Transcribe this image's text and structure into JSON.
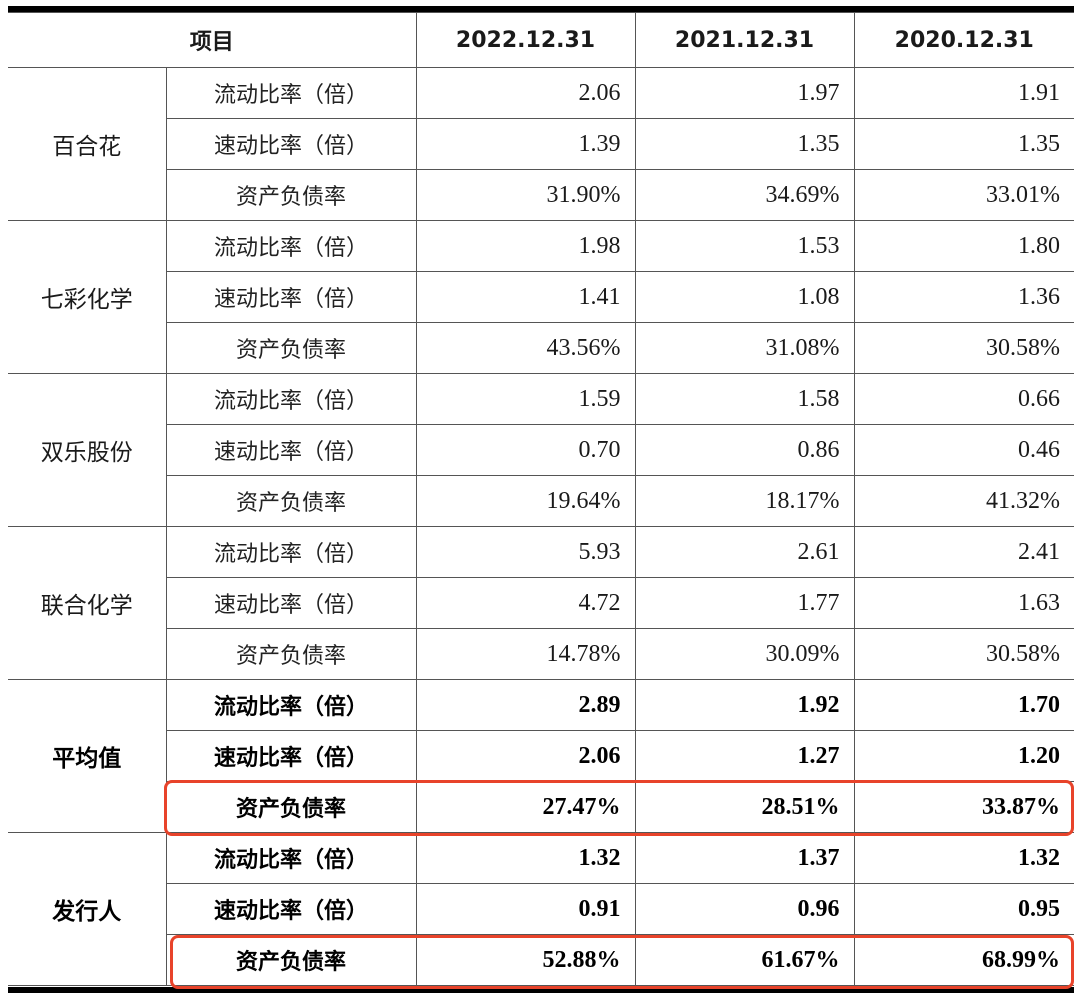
{
  "header": {
    "item": "项目",
    "col1": "2022.12.31",
    "col2": "2021.12.31",
    "col3": "2020.12.31"
  },
  "metrics": {
    "current": "流动比率（倍）",
    "quick": "速动比率（倍）",
    "debt": "资产负债率"
  },
  "groups": [
    {
      "name": "百合花",
      "rows": [
        {
          "values": [
            "2.06",
            "1.97",
            "1.91"
          ]
        },
        {
          "values": [
            "1.39",
            "1.35",
            "1.35"
          ]
        },
        {
          "values": [
            "31.90%",
            "34.69%",
            "33.01%"
          ]
        }
      ]
    },
    {
      "name": "七彩化学",
      "rows": [
        {
          "values": [
            "1.98",
            "1.53",
            "1.80"
          ]
        },
        {
          "values": [
            "1.41",
            "1.08",
            "1.36"
          ]
        },
        {
          "values": [
            "43.56%",
            "31.08%",
            "30.58%"
          ]
        }
      ]
    },
    {
      "name": "双乐股份",
      "rows": [
        {
          "values": [
            "1.59",
            "1.58",
            "0.66"
          ]
        },
        {
          "values": [
            "0.70",
            "0.86",
            "0.46"
          ]
        },
        {
          "values": [
            "19.64%",
            "18.17%",
            "41.32%"
          ]
        }
      ]
    },
    {
      "name": "联合化学",
      "rows": [
        {
          "values": [
            "5.93",
            "2.61",
            "2.41"
          ]
        },
        {
          "values": [
            "4.72",
            "1.77",
            "1.63"
          ]
        },
        {
          "values": [
            "14.78%",
            "30.09%",
            "30.58%"
          ]
        }
      ]
    },
    {
      "name": "平均值",
      "rows": [
        {
          "values": [
            "2.89",
            "1.92",
            "1.70"
          ]
        },
        {
          "values": [
            "2.06",
            "1.27",
            "1.20"
          ]
        },
        {
          "values": [
            "27.47%",
            "28.51%",
            "33.87%"
          ]
        }
      ]
    },
    {
      "name": "发行人",
      "rows": [
        {
          "values": [
            "1.32",
            "1.37",
            "1.32"
          ]
        },
        {
          "values": [
            "0.91",
            "0.96",
            "0.95"
          ]
        },
        {
          "values": [
            "52.88%",
            "61.67%",
            "68.99%"
          ]
        }
      ]
    }
  ],
  "highlight_color": "#e8432a"
}
